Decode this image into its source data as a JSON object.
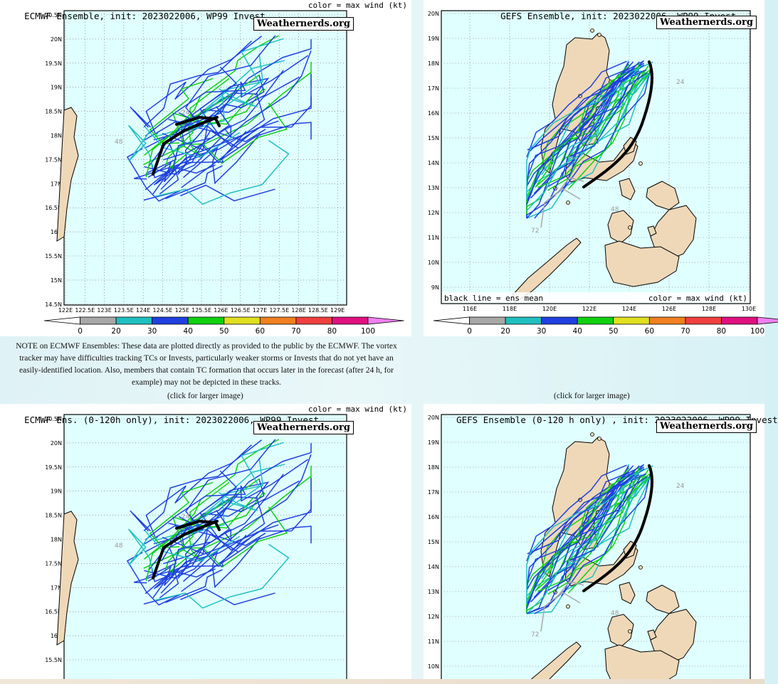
{
  "colors": {
    "ocean": "#e0ffff",
    "land": "#eed8b8",
    "mean_track": "#000000",
    "wind_0_20": "#a8a8a8",
    "wind_20_30": "#20c0c0",
    "wind_30_40": "#2040e0",
    "wind_40_50": "#10d010",
    "wind_50_60": "#e0e020",
    "wind_60_70": "#f08020",
    "wind_70_80": "#f04040",
    "wind_80_100": "#e01080",
    "wind_100_plus": "#f080f0"
  },
  "brand": "Weathernerds.org",
  "panels": {
    "ecmwf": {
      "title": "ECMWF Ensemble, init: 2023022006, WP99 Invest",
      "right_label": "color = max wind (kt)",
      "lat_ticks": [
        "20.5N",
        "20N",
        "19.5N",
        "19N",
        "18.5N",
        "18N",
        "17.5N",
        "17N",
        "16.5N",
        "16N",
        "15.5N",
        "15N",
        "14.5N"
      ],
      "lon_ticks": [
        "122E",
        "122.5E",
        "123E",
        "123.5E",
        "124E",
        "124.5E",
        "125E",
        "125.5E",
        "126E",
        "126.5E",
        "127E",
        "127.5E",
        "128E",
        "128.5E",
        "129E"
      ],
      "hour_labels": [
        "48",
        "24"
      ],
      "colorbar": [
        "0",
        "20",
        "30",
        "40",
        "50",
        "60",
        "70",
        "80",
        "100"
      ],
      "click_text": "(click for larger image)"
    },
    "gefs": {
      "title": "GEFS Ensemble, init: 2023022006, WP99 Invest",
      "inner_left": "black line = ens mean",
      "inner_right": "color = max wind (kt)",
      "lat_ticks": [
        "20N",
        "19N",
        "18N",
        "17N",
        "16N",
        "15N",
        "14N",
        "13N",
        "12N",
        "11N",
        "10N",
        "9N"
      ],
      "lon_ticks": [
        "116E",
        "118E",
        "120E",
        "122E",
        "124E",
        "126E",
        "128E",
        "130E"
      ],
      "hour_labels": [
        "72",
        "48",
        "24"
      ],
      "colorbar": [
        "0",
        "20",
        "30",
        "40",
        "50",
        "60",
        "70",
        "80",
        "100"
      ],
      "click_text": "(click for larger image)"
    },
    "ecmwf120": {
      "title": "ECMWF Ens. (0-120h only), init: 2023022006, WP99 Invest",
      "right_label": "color = max wind (kt)",
      "lat_ticks": [
        "20.5N",
        "20N",
        "19.5N",
        "19N",
        "18.5N",
        "18N",
        "17.5N",
        "17N",
        "16.5N",
        "16N",
        "15.5N"
      ],
      "hour_labels": [
        "48",
        "24"
      ]
    },
    "gefs120": {
      "title": "GEFS Ensemble (0-120 h only) , init: 2023022006, WP99 Invest",
      "lat_ticks": [
        "20N",
        "19N",
        "18N",
        "17N",
        "16N",
        "15N",
        "14N",
        "13N",
        "12N",
        "11N",
        "10N"
      ],
      "hour_labels": [
        "72",
        "48",
        "24"
      ]
    }
  },
  "note": "NOTE on ECMWF Ensembles: These data are plotted directly as provided to the public by the ECMWF. The vortex tracker may have difficulties tracking TCs or Invests, particularly weaker storms or Invests that do not yet have an easily-identified location. Also, members that contain TC formation that occurs later in the forecast (after 24 h, for example) may not be depicted in these tracks."
}
